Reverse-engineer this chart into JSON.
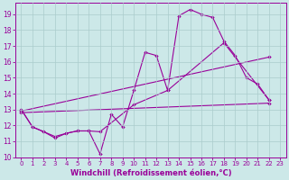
{
  "xlabel": "Windchill (Refroidissement éolien,°C)",
  "background_color": "#cce8e8",
  "grid_color": "#aacccc",
  "line_color": "#990099",
  "xlim": [
    -0.5,
    23.5
  ],
  "ylim": [
    10,
    19.7
  ],
  "yticks": [
    10,
    11,
    12,
    13,
    14,
    15,
    16,
    17,
    18,
    19
  ],
  "xticks": [
    0,
    1,
    2,
    3,
    4,
    5,
    6,
    7,
    8,
    9,
    10,
    11,
    12,
    13,
    14,
    15,
    16,
    17,
    18,
    19,
    20,
    21,
    22,
    23
  ],
  "series1": [
    [
      0,
      13.0
    ],
    [
      1,
      11.9
    ],
    [
      2,
      11.6
    ],
    [
      3,
      11.2
    ],
    [
      4,
      11.5
    ],
    [
      5,
      11.65
    ],
    [
      6,
      11.65
    ],
    [
      7,
      10.2
    ],
    [
      8,
      12.7
    ],
    [
      9,
      11.9
    ],
    [
      10,
      14.2
    ],
    [
      11,
      16.6
    ],
    [
      12,
      16.4
    ],
    [
      13,
      14.2
    ],
    [
      14,
      18.9
    ],
    [
      15,
      19.3
    ],
    [
      16,
      19.0
    ],
    [
      17,
      18.8
    ],
    [
      18,
      17.3
    ],
    [
      19,
      16.4
    ],
    [
      20,
      15.0
    ],
    [
      21,
      14.6
    ],
    [
      22,
      13.6
    ]
  ],
  "series2": [
    [
      0,
      13.0
    ],
    [
      1,
      11.9
    ],
    [
      2,
      11.6
    ],
    [
      3,
      11.3
    ],
    [
      4,
      11.5
    ],
    [
      5,
      11.65
    ],
    [
      6,
      11.65
    ],
    [
      7,
      11.6
    ],
    [
      10,
      13.3
    ],
    [
      13,
      14.2
    ],
    [
      18,
      17.2
    ],
    [
      22,
      13.6
    ]
  ],
  "series3": [
    [
      0,
      12.9
    ],
    [
      22,
      16.3
    ]
  ],
  "series4": [
    [
      0,
      12.8
    ],
    [
      22,
      13.4
    ]
  ]
}
